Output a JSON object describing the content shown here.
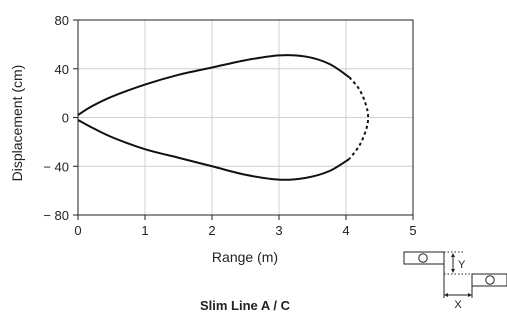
{
  "chart_data": {
    "type": "line",
    "caption": "Slim Line A / C",
    "xlabel": "Range (m)",
    "ylabel": "Displacement (cm)",
    "xlim": [
      0,
      5
    ],
    "ylim": [
      -80,
      80
    ],
    "x_ticks": [
      "0",
      "1",
      "2",
      "3",
      "4",
      "5"
    ],
    "y_ticks": [
      "80",
      "40",
      "0",
      "− 40",
      "− 80"
    ],
    "grid": true,
    "series": [
      {
        "style": "solid",
        "points": [
          [
            4.05,
            -34
          ],
          [
            3.75,
            -44
          ],
          [
            3.4,
            -49.5
          ],
          [
            3.0,
            -51
          ],
          [
            2.5,
            -47
          ],
          [
            2.0,
            -40
          ],
          [
            1.5,
            -33
          ],
          [
            1.0,
            -26
          ],
          [
            0.5,
            -16
          ],
          [
            0.2,
            -8
          ],
          [
            0.0,
            -2
          ]
        ]
      },
      {
        "style": "solid",
        "points": [
          [
            0.0,
            2
          ],
          [
            0.2,
            9
          ],
          [
            0.5,
            17
          ],
          [
            1.0,
            27
          ],
          [
            1.5,
            35
          ],
          [
            2.0,
            41
          ],
          [
            2.5,
            47
          ],
          [
            3.0,
            51
          ],
          [
            3.4,
            50
          ],
          [
            3.75,
            44
          ],
          [
            4.05,
            33
          ]
        ]
      },
      {
        "style": "dashed",
        "points": [
          [
            4.05,
            33
          ],
          [
            4.2,
            23
          ],
          [
            4.3,
            10
          ],
          [
            4.33,
            0
          ],
          [
            4.3,
            -10
          ],
          [
            4.2,
            -23
          ],
          [
            4.05,
            -34
          ]
        ]
      }
    ],
    "inset": {
      "x_label": "X",
      "y_label": "Y"
    }
  }
}
